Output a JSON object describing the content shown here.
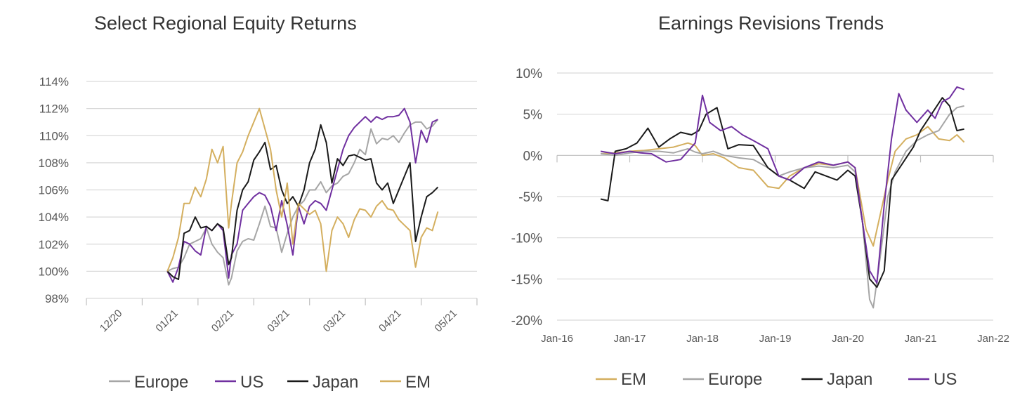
{
  "chart_data": [
    {
      "type": "line",
      "title": "Select Regional Equity Returns",
      "ylim": [
        0.98,
        1.14
      ],
      "yticks": [
        0.98,
        1.0,
        1.02,
        1.04,
        1.06,
        1.08,
        1.1,
        1.12,
        1.14
      ],
      "ytick_labels": [
        "98%",
        "100%",
        "102%",
        "104%",
        "106%",
        "108%",
        "110%",
        "112%",
        "114%"
      ],
      "xlim": [
        0,
        7
      ],
      "xtick_labels": [
        "12/20",
        "01/21",
        "02/21",
        "03/21",
        "03/21",
        "04/21",
        "05/21"
      ],
      "grid": true,
      "legend_position": "bottom",
      "series": [
        {
          "name": "Europe",
          "color": "#A6A6A6",
          "x": [
            1.45,
            1.55,
            1.65,
            1.75,
            1.85,
            1.95,
            2.05,
            2.15,
            2.25,
            2.35,
            2.45,
            2.55,
            2.6,
            2.7,
            2.8,
            2.9,
            3.0,
            3.1,
            3.2,
            3.3,
            3.4,
            3.5,
            3.6,
            3.7,
            3.8,
            3.9,
            4.0,
            4.1,
            4.2,
            4.3,
            4.4,
            4.5,
            4.6,
            4.7,
            4.8,
            4.9,
            5.0,
            5.1,
            5.2,
            5.3,
            5.4,
            5.5,
            5.6,
            5.7,
            5.8,
            5.9,
            6.0,
            6.1,
            6.2,
            6.3
          ],
          "y": [
            1.0,
            1.002,
            1.003,
            1.01,
            1.02,
            1.022,
            1.024,
            1.032,
            1.02,
            1.014,
            1.01,
            0.99,
            0.995,
            1.015,
            1.022,
            1.024,
            1.023,
            1.035,
            1.048,
            1.033,
            1.032,
            1.014,
            1.028,
            1.04,
            1.048,
            1.052,
            1.06,
            1.06,
            1.066,
            1.058,
            1.063,
            1.065,
            1.07,
            1.072,
            1.08,
            1.09,
            1.086,
            1.105,
            1.094,
            1.098,
            1.097,
            1.1,
            1.095,
            1.102,
            1.108,
            1.11,
            1.11,
            1.105,
            1.107,
            1.112
          ]
        },
        {
          "name": "US",
          "color": "#7030A0",
          "x": [
            1.45,
            1.55,
            1.65,
            1.75,
            1.85,
            1.95,
            2.05,
            2.15,
            2.25,
            2.35,
            2.45,
            2.55,
            2.6,
            2.7,
            2.8,
            2.9,
            3.0,
            3.1,
            3.2,
            3.3,
            3.4,
            3.5,
            3.6,
            3.7,
            3.8,
            3.9,
            4.0,
            4.1,
            4.2,
            4.3,
            4.4,
            4.5,
            4.6,
            4.7,
            4.8,
            4.9,
            5.0,
            5.1,
            5.2,
            5.3,
            5.4,
            5.5,
            5.6,
            5.7,
            5.8,
            5.9,
            6.0,
            6.1,
            6.2,
            6.3
          ],
          "y": [
            1.0,
            0.992,
            1.003,
            1.022,
            1.02,
            1.015,
            1.012,
            1.033,
            1.03,
            1.035,
            1.03,
            0.995,
            1.012,
            1.02,
            1.045,
            1.05,
            1.055,
            1.058,
            1.056,
            1.048,
            1.03,
            1.052,
            1.034,
            1.012,
            1.048,
            1.035,
            1.048,
            1.052,
            1.05,
            1.045,
            1.06,
            1.075,
            1.09,
            1.1,
            1.106,
            1.11,
            1.114,
            1.11,
            1.114,
            1.112,
            1.114,
            1.114,
            1.115,
            1.12,
            1.11,
            1.08,
            1.104,
            1.095,
            1.11,
            1.112
          ]
        },
        {
          "name": "Japan",
          "color": "#1A1A1A",
          "x": [
            1.45,
            1.55,
            1.65,
            1.75,
            1.85,
            1.95,
            2.05,
            2.15,
            2.25,
            2.35,
            2.45,
            2.55,
            2.6,
            2.7,
            2.8,
            2.9,
            3.0,
            3.1,
            3.2,
            3.3,
            3.4,
            3.5,
            3.6,
            3.7,
            3.8,
            3.9,
            4.0,
            4.1,
            4.2,
            4.3,
            4.4,
            4.5,
            4.6,
            4.7,
            4.8,
            4.9,
            5.0,
            5.1,
            5.2,
            5.3,
            5.4,
            5.5,
            5.6,
            5.7,
            5.8,
            5.9,
            6.0,
            6.1,
            6.2,
            6.3
          ],
          "y": [
            1.0,
            0.996,
            0.994,
            1.028,
            1.03,
            1.04,
            1.032,
            1.033,
            1.03,
            1.035,
            1.032,
            1.005,
            1.01,
            1.045,
            1.06,
            1.066,
            1.082,
            1.088,
            1.095,
            1.075,
            1.078,
            1.06,
            1.05,
            1.055,
            1.048,
            1.06,
            1.08,
            1.09,
            1.108,
            1.095,
            1.065,
            1.083,
            1.078,
            1.085,
            1.086,
            1.084,
            1.082,
            1.083,
            1.065,
            1.06,
            1.065,
            1.05,
            1.06,
            1.07,
            1.08,
            1.022,
            1.04,
            1.055,
            1.058,
            1.062
          ]
        },
        {
          "name": "EM",
          "color": "#D4AF5F",
          "x": [
            1.45,
            1.55,
            1.65,
            1.75,
            1.85,
            1.95,
            2.05,
            2.15,
            2.25,
            2.35,
            2.45,
            2.55,
            2.6,
            2.7,
            2.8,
            2.9,
            3.0,
            3.1,
            3.2,
            3.3,
            3.4,
            3.5,
            3.6,
            3.7,
            3.8,
            3.9,
            4.0,
            4.1,
            4.2,
            4.3,
            4.4,
            4.5,
            4.6,
            4.7,
            4.8,
            4.9,
            5.0,
            5.1,
            5.2,
            5.3,
            5.4,
            5.5,
            5.6,
            5.7,
            5.8,
            5.9,
            6.0,
            6.1,
            6.2,
            6.3
          ],
          "y": [
            1.0,
            1.01,
            1.025,
            1.05,
            1.05,
            1.062,
            1.055,
            1.068,
            1.09,
            1.08,
            1.092,
            1.032,
            1.05,
            1.08,
            1.088,
            1.1,
            1.11,
            1.12,
            1.105,
            1.09,
            1.06,
            1.04,
            1.065,
            1.02,
            1.05,
            1.046,
            1.042,
            1.045,
            1.035,
            1.0,
            1.03,
            1.04,
            1.035,
            1.025,
            1.038,
            1.046,
            1.045,
            1.04,
            1.048,
            1.052,
            1.046,
            1.045,
            1.038,
            1.034,
            1.03,
            1.003,
            1.025,
            1.032,
            1.03,
            1.044
          ]
        }
      ]
    },
    {
      "type": "line",
      "title": "Earnings Revisions Trends",
      "ylim": [
        -20,
        10
      ],
      "yticks": [
        -20,
        -15,
        -10,
        -5,
        0,
        5,
        10
      ],
      "ytick_labels": [
        "-20%",
        "-15%",
        "-10%",
        "-5%",
        "0%",
        "5%",
        "10%"
      ],
      "xlim": [
        2016,
        2022
      ],
      "xticks": [
        2016,
        2017,
        2018,
        2019,
        2020,
        2021,
        2022
      ],
      "xtick_labels": [
        "Jan-16",
        "Jan-17",
        "Jan-18",
        "Jan-19",
        "Jan-20",
        "Jan-21",
        "Jan-22"
      ],
      "grid": true,
      "legend_position": "bottom",
      "series": [
        {
          "name": "EM",
          "color": "#D4AF5F",
          "x": [
            2016.6,
            2016.8,
            2017.0,
            2017.2,
            2017.4,
            2017.6,
            2017.8,
            2017.9,
            2018.0,
            2018.15,
            2018.3,
            2018.5,
            2018.7,
            2018.9,
            2019.05,
            2019.2,
            2019.4,
            2019.6,
            2019.8,
            2020.0,
            2020.1,
            2020.25,
            2020.35,
            2020.45,
            2020.55,
            2020.65,
            2020.8,
            2020.95,
            2021.1,
            2021.25,
            2021.4,
            2021.5,
            2021.6
          ],
          "y": [
            0.2,
            0.3,
            0.5,
            0.6,
            0.8,
            1.0,
            1.5,
            1.2,
            0.0,
            0.2,
            -0.3,
            -1.5,
            -1.8,
            -3.8,
            -4.0,
            -2.5,
            -1.5,
            -1.0,
            -1.2,
            -0.8,
            -1.5,
            -9.0,
            -11.0,
            -7.0,
            -3.0,
            0.5,
            2.0,
            2.5,
            3.5,
            2.0,
            1.8,
            2.5,
            1.6
          ]
        },
        {
          "name": "Europe",
          "color": "#A6A6A6",
          "x": [
            2016.6,
            2016.8,
            2017.0,
            2017.2,
            2017.4,
            2017.6,
            2017.8,
            2017.9,
            2018.0,
            2018.15,
            2018.3,
            2018.5,
            2018.7,
            2018.9,
            2019.05,
            2019.2,
            2019.4,
            2019.6,
            2019.8,
            2020.0,
            2020.1,
            2020.2,
            2020.3,
            2020.35,
            2020.45,
            2020.55,
            2020.65,
            2020.8,
            2020.95,
            2021.1,
            2021.25,
            2021.4,
            2021.5,
            2021.6
          ],
          "y": [
            0.2,
            0.0,
            0.3,
            0.5,
            0.5,
            0.3,
            0.8,
            0.4,
            0.2,
            0.5,
            0.0,
            -0.3,
            -0.5,
            -1.5,
            -2.5,
            -2.0,
            -1.5,
            -1.3,
            -1.5,
            -1.2,
            -2.0,
            -8.0,
            -17.5,
            -18.5,
            -12.0,
            -5.0,
            -2.0,
            0.5,
            1.8,
            2.5,
            3.0,
            5.0,
            5.8,
            6.0
          ]
        },
        {
          "name": "Japan",
          "color": "#1A1A1A",
          "x": [
            2016.6,
            2016.7,
            2016.8,
            2016.95,
            2017.1,
            2017.25,
            2017.4,
            2017.55,
            2017.7,
            2017.85,
            2017.95,
            2018.05,
            2018.2,
            2018.35,
            2018.5,
            2018.7,
            2018.9,
            2019.05,
            2019.2,
            2019.4,
            2019.55,
            2019.7,
            2019.85,
            2020.0,
            2020.1,
            2020.2,
            2020.3,
            2020.4,
            2020.5,
            2020.6,
            2020.75,
            2020.9,
            2021.0,
            2021.15,
            2021.3,
            2021.4,
            2021.5,
            2021.6
          ],
          "y": [
            -5.3,
            -5.5,
            0.5,
            0.8,
            1.5,
            3.3,
            1.0,
            2.0,
            2.8,
            2.5,
            3.0,
            5.0,
            5.8,
            0.8,
            1.3,
            1.2,
            -1.5,
            -2.5,
            -3.0,
            -4.0,
            -2.0,
            -2.5,
            -3.0,
            -1.8,
            -2.5,
            -8.0,
            -15.0,
            -16.0,
            -14.0,
            -3.0,
            -1.0,
            1.0,
            3.0,
            5.0,
            7.0,
            6.0,
            3.0,
            3.2
          ]
        },
        {
          "name": "US",
          "color": "#7030A0",
          "x": [
            2016.6,
            2016.8,
            2017.0,
            2017.15,
            2017.3,
            2017.5,
            2017.7,
            2017.9,
            2018.0,
            2018.1,
            2018.25,
            2018.4,
            2018.55,
            2018.7,
            2018.9,
            2019.05,
            2019.2,
            2019.4,
            2019.6,
            2019.8,
            2020.0,
            2020.1,
            2020.2,
            2020.3,
            2020.4,
            2020.5,
            2020.6,
            2020.7,
            2020.8,
            2020.95,
            2021.1,
            2021.2,
            2021.3,
            2021.4,
            2021.5,
            2021.6
          ],
          "y": [
            0.5,
            0.2,
            0.5,
            0.3,
            0.2,
            -0.8,
            -0.5,
            1.5,
            7.3,
            4.0,
            3.0,
            3.5,
            2.5,
            1.8,
            0.8,
            -2.5,
            -3.0,
            -1.5,
            -0.8,
            -1.2,
            -0.8,
            -1.5,
            -8.0,
            -14.0,
            -15.5,
            -6.0,
            2.0,
            7.5,
            5.5,
            4.0,
            5.5,
            4.5,
            6.5,
            7.0,
            8.3,
            8.0
          ]
        }
      ]
    }
  ]
}
